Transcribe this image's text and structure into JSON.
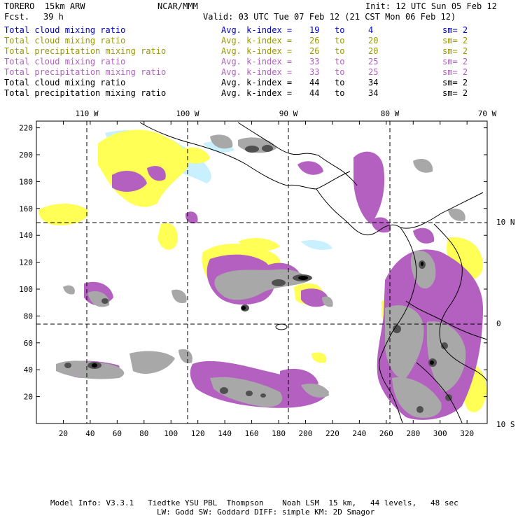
{
  "header": {
    "model": "TORERO  15km ARW",
    "org": "NCAR/MMM",
    "init": "Init: 12 UTC Sun 05 Feb 12",
    "fcst_label": "Fcst.",
    "fcst_value": "39 h",
    "valid": "Valid: 03 UTC Tue 07 Feb 12 (21 CST Mon 06 Feb 12)"
  },
  "legend": [
    {
      "field": "Total cloud mixing ratio",
      "label": "Avg. k-index =",
      "from": "19",
      "to_word": "to",
      "to": "4",
      "sm": "sm= 2",
      "color": "#0000cc"
    },
    {
      "field": "Total cloud mixing ratio",
      "label": "Avg. k-index =",
      "from": "26",
      "to_word": "to",
      "to": "20",
      "sm": "sm= 2",
      "color": "#999900"
    },
    {
      "field": "Total precipitation mixing ratio",
      "label": "Avg. k-index =",
      "from": "26",
      "to_word": "to",
      "to": "20",
      "sm": "sm= 2",
      "color": "#999900"
    },
    {
      "field": "Total cloud mixing ratio",
      "label": "Avg. k-index =",
      "from": "33",
      "to_word": "to",
      "to": "25",
      "sm": "sm= 2",
      "color": "#b060c0"
    },
    {
      "field": "Total precipitation mixing ratio",
      "label": "Avg. k-index =",
      "from": "33",
      "to_word": "to",
      "to": "25",
      "sm": "sm= 2",
      "color": "#b060c0"
    },
    {
      "field": "Total cloud mixing ratio",
      "label": "Avg. k-index =",
      "from": "44",
      "to_word": "to",
      "to": "34",
      "sm": "sm= 2",
      "color": "#000000"
    },
    {
      "field": "Total precipitation mixing ratio",
      "label": "Avg. k-index =",
      "from": "44",
      "to_word": "to",
      "to": "34",
      "sm": "sm= 2",
      "color": "#000000"
    }
  ],
  "map": {
    "lon_labels": [
      "110 W",
      "100 W",
      "90 W",
      "80 W",
      "70 W"
    ],
    "lat_labels": [
      "10 N",
      "0",
      "10 S"
    ],
    "x_ticks": [
      "20",
      "40",
      "60",
      "80",
      "100",
      "120",
      "140",
      "160",
      "180",
      "200",
      "220",
      "240",
      "260",
      "280",
      "300",
      "320"
    ],
    "y_ticks": [
      "20",
      "40",
      "60",
      "80",
      "100",
      "120",
      "140",
      "160",
      "180",
      "200",
      "220"
    ],
    "colors": {
      "yellow": "#ffff55",
      "cyan": "#c8f0ff",
      "purple": "#b460c0",
      "gray": "#a8a8a8",
      "darkgray": "#505050",
      "black": "#000000"
    }
  },
  "footer": {
    "line1": "Model Info: V3.3.1   Tiedtke YSU PBL  Thompson    Noah LSM  15 km,   44 levels,   48 sec",
    "line2": "LW: Godd SW: Goddard DIFF: simple KM: 2D Smagor"
  }
}
